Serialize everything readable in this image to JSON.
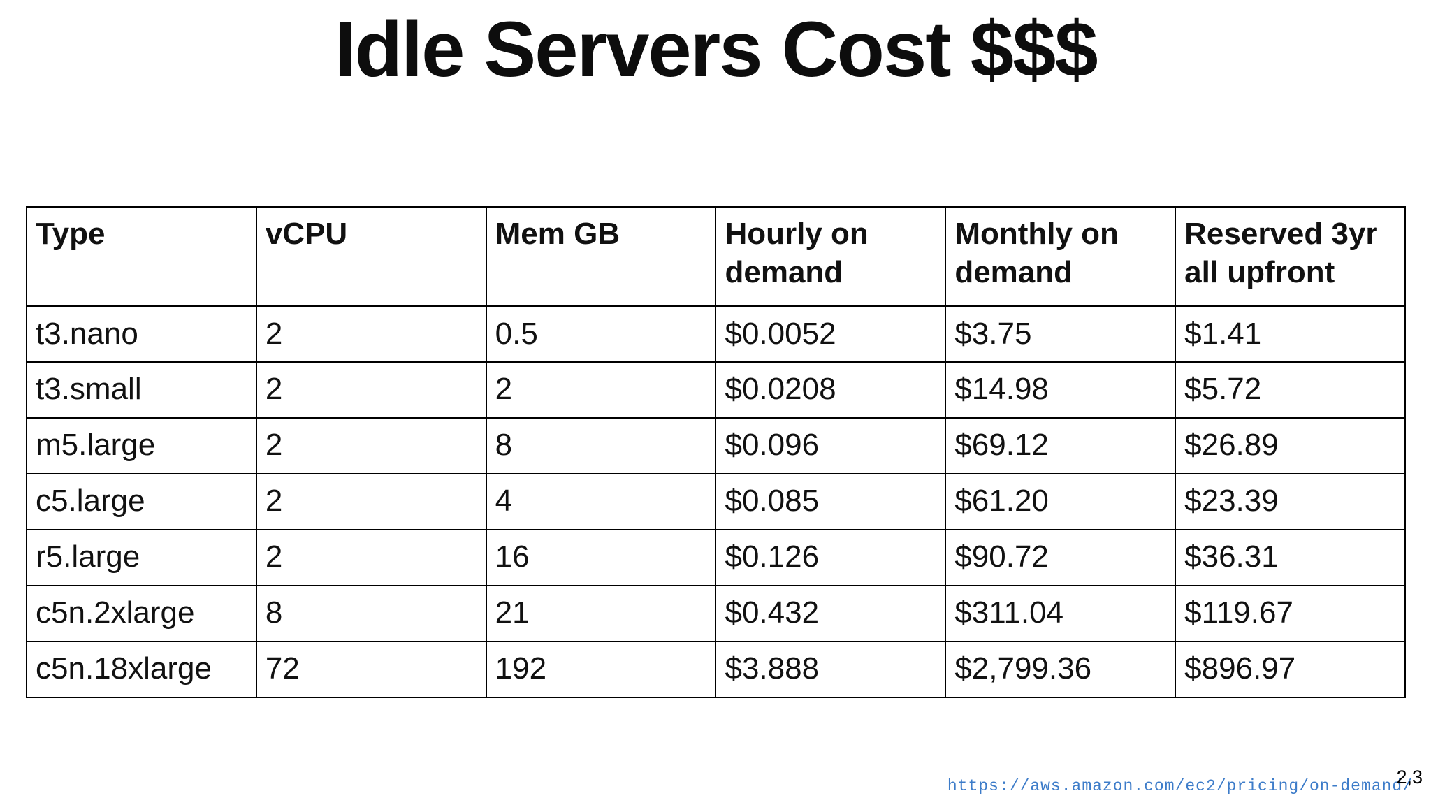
{
  "slide": {
    "title": "Idle Servers Cost $$$",
    "footer": {
      "url": "https://aws.amazon.com/ec2/pricing/on-demand/",
      "footnote_refs": "2,3"
    },
    "colors": {
      "background": "#ffffff",
      "text": "#111111",
      "table_border": "#000000",
      "link_blue": "#3d7cc9"
    }
  },
  "table": {
    "columns": [
      "Type",
      "vCPU",
      "Mem GB",
      "Hourly on demand",
      "Monthly on demand",
      "Reserved 3yr all upfront"
    ],
    "rows": [
      [
        "t3.nano",
        "2",
        "0.5",
        "$0.0052",
        "$3.75",
        "$1.41"
      ],
      [
        "t3.small",
        "2",
        "2",
        "$0.0208",
        "$14.98",
        "$5.72"
      ],
      [
        "m5.large",
        "2",
        "8",
        "$0.096",
        "$69.12",
        "$26.89"
      ],
      [
        "c5.large",
        "2",
        "4",
        "$0.085",
        "$61.20",
        "$23.39"
      ],
      [
        "r5.large",
        "2",
        "16",
        "$0.126",
        "$90.72",
        "$36.31"
      ],
      [
        "c5n.2xlarge",
        "8",
        "21",
        "$0.432",
        "$311.04",
        "$119.67"
      ],
      [
        "c5n.18xlarge",
        "72",
        "192",
        "$3.888",
        "$2,799.36",
        "$896.97"
      ]
    ]
  }
}
